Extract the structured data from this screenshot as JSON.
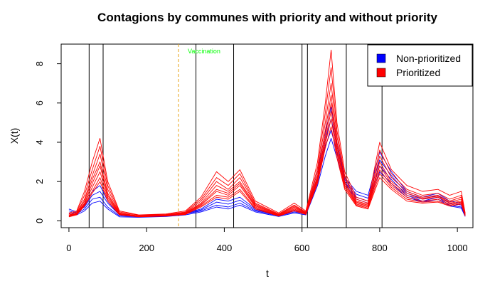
{
  "chart_data": {
    "type": "line",
    "title": "Contagions by communes with priority and without priority",
    "xlabel": "t",
    "ylabel": "X(t)",
    "xlim": [
      -20,
      1040
    ],
    "ylim": [
      -0.35,
      9.0
    ],
    "x_ticks": [
      0,
      200,
      400,
      600,
      800,
      1000
    ],
    "y_ticks": [
      0,
      2,
      4,
      6,
      8
    ],
    "grid": false,
    "legend": {
      "position": "top-right",
      "entries": [
        {
          "label": "Non-prioritized",
          "color": "#0000ff"
        },
        {
          "label": "Prioritized",
          "color": "#ff0000"
        }
      ]
    },
    "vertical_lines": [
      52,
      88,
      327,
      424,
      600,
      614,
      714,
      806
    ],
    "vaccination": {
      "x": 282,
      "label": "Vaccination",
      "line_color": "#e8a317",
      "text_color": "#00ff00"
    },
    "series": [
      {
        "group": "Non-prioritized",
        "color": "#0000ff",
        "x": [
          0,
          20,
          40,
          60,
          80,
          100,
          130,
          180,
          250,
          300,
          340,
          380,
          410,
          440,
          480,
          540,
          580,
          610,
          640,
          660,
          675,
          690,
          710,
          740,
          770,
          800,
          830,
          870,
          910,
          950,
          980,
          1010,
          1020
        ],
        "values": [
          0.5,
          0.4,
          0.8,
          1.5,
          1.8,
          1.0,
          0.3,
          0.25,
          0.3,
          0.4,
          0.6,
          1.1,
          1.0,
          1.2,
          0.6,
          0.3,
          0.5,
          0.4,
          2.5,
          4.5,
          5.8,
          4.0,
          2.2,
          1.5,
          1.3,
          3.5,
          2.5,
          1.5,
          1.2,
          1.4,
          1.0,
          0.9,
          0.3
        ]
      },
      {
        "group": "Non-prioritized",
        "color": "#0000ff",
        "x": [
          0,
          20,
          40,
          60,
          80,
          100,
          130,
          180,
          250,
          300,
          340,
          380,
          410,
          440,
          480,
          540,
          580,
          610,
          640,
          660,
          675,
          690,
          710,
          740,
          770,
          800,
          830,
          870,
          910,
          950,
          980,
          1010,
          1020
        ],
        "values": [
          0.4,
          0.35,
          0.6,
          1.1,
          1.2,
          0.7,
          0.25,
          0.2,
          0.25,
          0.35,
          0.5,
          0.8,
          0.7,
          0.9,
          0.5,
          0.25,
          0.45,
          0.35,
          2.0,
          3.8,
          4.6,
          3.5,
          2.0,
          1.2,
          1.0,
          2.8,
          2.1,
          1.3,
          1.0,
          1.2,
          0.8,
          0.7,
          0.25
        ]
      },
      {
        "group": "Non-prioritized",
        "color": "#0000ff",
        "x": [
          0,
          20,
          40,
          60,
          80,
          100,
          130,
          180,
          250,
          300,
          340,
          380,
          410,
          440,
          480,
          540,
          580,
          610,
          640,
          660,
          675,
          690,
          710,
          740,
          770,
          800,
          830,
          870,
          910,
          950,
          980,
          1010,
          1020
        ],
        "values": [
          0.6,
          0.45,
          0.7,
          1.3,
          1.5,
          0.9,
          0.3,
          0.22,
          0.28,
          0.38,
          0.55,
          0.95,
          0.85,
          1.05,
          0.55,
          0.28,
          0.5,
          0.38,
          2.2,
          4.1,
          5.2,
          3.8,
          2.1,
          1.35,
          1.15,
          3.1,
          2.3,
          1.4,
          1.1,
          1.3,
          0.9,
          0.8,
          0.28
        ]
      },
      {
        "group": "Non-prioritized",
        "color": "#0000ff",
        "x": [
          0,
          20,
          40,
          60,
          80,
          100,
          130,
          180,
          250,
          300,
          340,
          380,
          410,
          440,
          480,
          540,
          580,
          610,
          640,
          660,
          675,
          690,
          710,
          740,
          770,
          800,
          830,
          870,
          910,
          950,
          980,
          1010,
          1020
        ],
        "values": [
          0.3,
          0.3,
          0.5,
          0.9,
          1.0,
          0.6,
          0.2,
          0.18,
          0.22,
          0.3,
          0.45,
          0.7,
          0.6,
          0.8,
          0.45,
          0.22,
          0.4,
          0.3,
          1.8,
          3.3,
          4.2,
          3.2,
          1.9,
          1.1,
          0.9,
          2.5,
          1.9,
          1.2,
          0.95,
          1.1,
          0.75,
          0.65,
          0.22
        ]
      },
      {
        "group": "Prioritized",
        "color": "#ff0000",
        "x": [
          0,
          20,
          40,
          60,
          80,
          100,
          130,
          180,
          250,
          300,
          340,
          380,
          410,
          440,
          480,
          540,
          580,
          610,
          640,
          660,
          675,
          690,
          710,
          740,
          770,
          800,
          830,
          870,
          910,
          950,
          980,
          1010,
          1020
        ],
        "values": [
          0.4,
          0.5,
          1.5,
          3.0,
          4.2,
          2.0,
          0.5,
          0.3,
          0.35,
          0.5,
          1.2,
          2.5,
          2.0,
          2.6,
          1.0,
          0.4,
          0.9,
          0.5,
          3.0,
          6.0,
          8.7,
          5.0,
          2.5,
          1.2,
          1.0,
          4.0,
          2.6,
          1.8,
          1.5,
          1.6,
          1.3,
          1.5,
          0.4
        ]
      },
      {
        "group": "Prioritized",
        "color": "#ff0000",
        "x": [
          0,
          20,
          40,
          60,
          80,
          100,
          130,
          180,
          250,
          300,
          340,
          380,
          410,
          440,
          480,
          540,
          580,
          610,
          640,
          660,
          675,
          690,
          710,
          740,
          770,
          800,
          830,
          870,
          910,
          950,
          980,
          1010,
          1020
        ],
        "values": [
          0.35,
          0.45,
          1.3,
          2.6,
          3.8,
          1.8,
          0.45,
          0.28,
          0.32,
          0.45,
          1.1,
          2.2,
          1.8,
          2.4,
          0.9,
          0.35,
          0.8,
          0.45,
          2.7,
          5.5,
          7.8,
          4.6,
          2.3,
          1.1,
          0.9,
          3.6,
          2.4,
          1.6,
          1.3,
          1.4,
          1.1,
          1.3,
          0.35
        ]
      },
      {
        "group": "Prioritized",
        "color": "#ff0000",
        "x": [
          0,
          20,
          40,
          60,
          80,
          100,
          130,
          180,
          250,
          300,
          340,
          380,
          410,
          440,
          480,
          540,
          580,
          610,
          640,
          660,
          675,
          690,
          710,
          740,
          770,
          800,
          830,
          870,
          910,
          950,
          980,
          1010,
          1020
        ],
        "values": [
          0.3,
          0.4,
          1.1,
          2.3,
          3.4,
          1.6,
          0.4,
          0.25,
          0.3,
          0.42,
          1.0,
          2.0,
          1.6,
          2.2,
          0.85,
          0.32,
          0.75,
          0.42,
          2.5,
          5.0,
          7.0,
          4.3,
          2.2,
          1.0,
          0.85,
          3.3,
          2.2,
          1.5,
          1.2,
          1.3,
          1.0,
          1.2,
          0.32
        ]
      },
      {
        "group": "Prioritized",
        "color": "#ff0000",
        "x": [
          0,
          20,
          40,
          60,
          80,
          100,
          130,
          180,
          250,
          300,
          340,
          380,
          410,
          440,
          480,
          540,
          580,
          610,
          640,
          660,
          675,
          690,
          710,
          740,
          770,
          800,
          830,
          870,
          910,
          950,
          980,
          1010,
          1020
        ],
        "values": [
          0.3,
          0.38,
          1.0,
          2.1,
          3.0,
          1.4,
          0.38,
          0.24,
          0.28,
          0.4,
          0.9,
          1.8,
          1.5,
          2.0,
          0.8,
          0.3,
          0.7,
          0.4,
          2.3,
          4.6,
          6.4,
          4.0,
          2.0,
          0.95,
          0.8,
          3.0,
          2.0,
          1.4,
          1.15,
          1.25,
          0.95,
          1.1,
          0.3
        ]
      },
      {
        "group": "Prioritized",
        "color": "#ff0000",
        "x": [
          0,
          20,
          40,
          60,
          80,
          100,
          130,
          180,
          250,
          300,
          340,
          380,
          410,
          440,
          480,
          540,
          580,
          610,
          640,
          660,
          675,
          690,
          710,
          740,
          770,
          800,
          830,
          870,
          910,
          950,
          980,
          1010,
          1020
        ],
        "values": [
          0.28,
          0.36,
          0.9,
          1.9,
          2.8,
          1.3,
          0.36,
          0.23,
          0.27,
          0.38,
          0.85,
          1.6,
          1.4,
          1.9,
          0.75,
          0.28,
          0.65,
          0.38,
          2.2,
          4.3,
          6.0,
          3.8,
          1.9,
          0.9,
          0.75,
          2.8,
          1.9,
          1.3,
          1.1,
          1.2,
          0.9,
          1.0,
          0.28
        ]
      },
      {
        "group": "Prioritized",
        "color": "#ff0000",
        "x": [
          0,
          20,
          40,
          60,
          80,
          100,
          130,
          180,
          250,
          300,
          340,
          380,
          410,
          440,
          480,
          540,
          580,
          610,
          640,
          660,
          675,
          690,
          710,
          740,
          770,
          800,
          830,
          870,
          910,
          950,
          980,
          1010,
          1020
        ],
        "values": [
          0.25,
          0.34,
          0.85,
          1.7,
          2.5,
          1.2,
          0.34,
          0.22,
          0.26,
          0.36,
          0.8,
          1.5,
          1.3,
          1.8,
          0.7,
          0.26,
          0.6,
          0.36,
          2.1,
          4.1,
          5.6,
          3.6,
          1.8,
          0.85,
          0.7,
          2.6,
          1.8,
          1.2,
          1.0,
          1.1,
          0.85,
          0.95,
          0.26
        ]
      },
      {
        "group": "Prioritized",
        "color": "#ff0000",
        "x": [
          0,
          20,
          40,
          60,
          80,
          100,
          130,
          180,
          250,
          300,
          340,
          380,
          410,
          440,
          480,
          540,
          580,
          610,
          640,
          660,
          675,
          690,
          710,
          740,
          770,
          800,
          830,
          870,
          910,
          950,
          980,
          1010,
          1020
        ],
        "values": [
          0.22,
          0.32,
          0.8,
          1.5,
          2.2,
          1.1,
          0.32,
          0.21,
          0.25,
          0.34,
          0.75,
          1.3,
          1.2,
          1.6,
          0.65,
          0.25,
          0.55,
          0.34,
          2.0,
          3.9,
          5.2,
          3.4,
          1.7,
          0.8,
          0.65,
          2.4,
          1.7,
          1.1,
          0.95,
          1.0,
          0.8,
          0.9,
          0.25
        ]
      },
      {
        "group": "Prioritized",
        "color": "#ff0000",
        "x": [
          0,
          20,
          40,
          60,
          80,
          100,
          130,
          180,
          250,
          300,
          340,
          380,
          410,
          440,
          480,
          540,
          580,
          610,
          640,
          660,
          675,
          690,
          710,
          740,
          770,
          800,
          830,
          870,
          910,
          950,
          980,
          1010,
          1020
        ],
        "values": [
          0.2,
          0.3,
          0.75,
          1.4,
          2.0,
          1.0,
          0.3,
          0.2,
          0.24,
          0.32,
          0.7,
          1.2,
          1.1,
          1.5,
          0.6,
          0.24,
          0.5,
          0.32,
          1.9,
          3.7,
          4.8,
          3.2,
          1.6,
          0.75,
          0.6,
          2.2,
          1.6,
          1.0,
          0.9,
          0.95,
          0.75,
          0.85,
          0.24
        ]
      }
    ]
  }
}
